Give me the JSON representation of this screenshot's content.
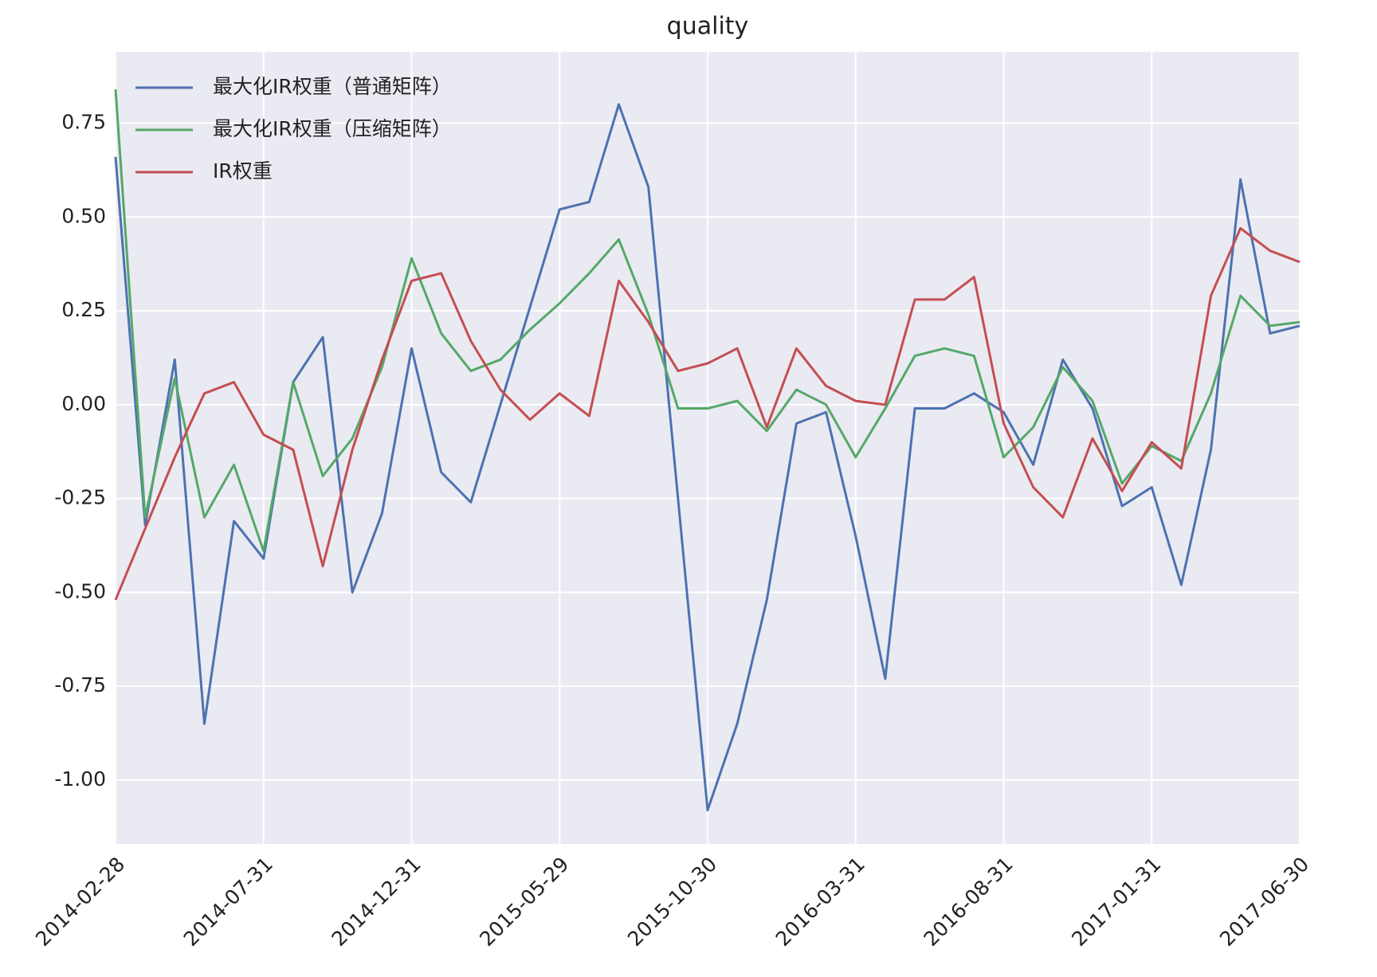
{
  "chart_data": {
    "type": "line",
    "title": "quality",
    "categories": [
      "2014-02-28",
      null,
      null,
      null,
      null,
      "2014-07-31",
      null,
      null,
      null,
      null,
      "2014-12-31",
      null,
      null,
      null,
      null,
      "2015-05-29",
      null,
      null,
      null,
      null,
      "2015-10-30",
      null,
      null,
      null,
      null,
      "2016-03-31",
      null,
      null,
      null,
      null,
      "2016-08-31",
      null,
      null,
      null,
      null,
      "2017-01-31",
      null,
      null,
      null,
      null,
      "2017-06-30"
    ],
    "series": [
      {
        "name": "最大化IR权重（普通矩阵）",
        "color": "#4c72b0",
        "values": [
          0.66,
          -0.32,
          0.12,
          -0.85,
          -0.31,
          -0.41,
          0.06,
          0.18,
          -0.5,
          -0.29,
          0.15,
          -0.18,
          -0.26,
          0.0,
          0.26,
          0.52,
          0.54,
          0.8,
          0.58,
          -0.25,
          -1.08,
          -0.85,
          -0.52,
          -0.05,
          -0.02,
          -0.35,
          -0.73,
          -0.01,
          -0.01,
          0.03,
          -0.02,
          -0.16,
          0.12,
          -0.01,
          -0.27,
          -0.22,
          -0.48,
          -0.12,
          0.6,
          0.19,
          0.21
        ]
      },
      {
        "name": "最大化IR权重（压缩矩阵）",
        "color": "#55a868",
        "values": [
          0.84,
          -0.3,
          0.07,
          -0.3,
          -0.16,
          -0.39,
          0.06,
          -0.19,
          -0.09,
          0.1,
          0.39,
          0.19,
          0.09,
          0.12,
          0.2,
          0.27,
          0.35,
          0.44,
          0.24,
          -0.01,
          -0.01,
          0.01,
          -0.07,
          0.04,
          0.0,
          -0.14,
          -0.01,
          0.13,
          0.15,
          0.13,
          -0.14,
          -0.06,
          0.1,
          0.01,
          -0.21,
          -0.11,
          -0.15,
          0.03,
          0.29,
          0.21,
          0.22
        ]
      },
      {
        "name": "IR权重",
        "color": "#c44e52",
        "values": [
          -0.52,
          -0.33,
          -0.14,
          0.03,
          0.06,
          -0.08,
          -0.12,
          -0.43,
          -0.12,
          0.12,
          0.33,
          0.35,
          0.17,
          0.04,
          -0.04,
          0.03,
          -0.03,
          0.33,
          0.22,
          0.09,
          0.11,
          0.15,
          -0.06,
          0.15,
          0.05,
          0.01,
          0.0,
          0.28,
          0.28,
          0.34,
          -0.05,
          -0.22,
          -0.3,
          -0.09,
          -0.23,
          -0.1,
          -0.17,
          0.29,
          0.47,
          0.41,
          0.38
        ]
      }
    ],
    "ylim": [
      -1.17,
      0.94
    ],
    "yticks": [
      {
        "value": -1,
        "label": "-1.00"
      },
      -0.75,
      {
        "value": -0.5,
        "label": "-0.50"
      },
      -0.25,
      {
        "value": 0,
        "label": "0.00"
      },
      0.25,
      {
        "value": 0.5,
        "label": "0.50"
      },
      0.75
    ],
    "grid": true,
    "legend": "upper left"
  }
}
